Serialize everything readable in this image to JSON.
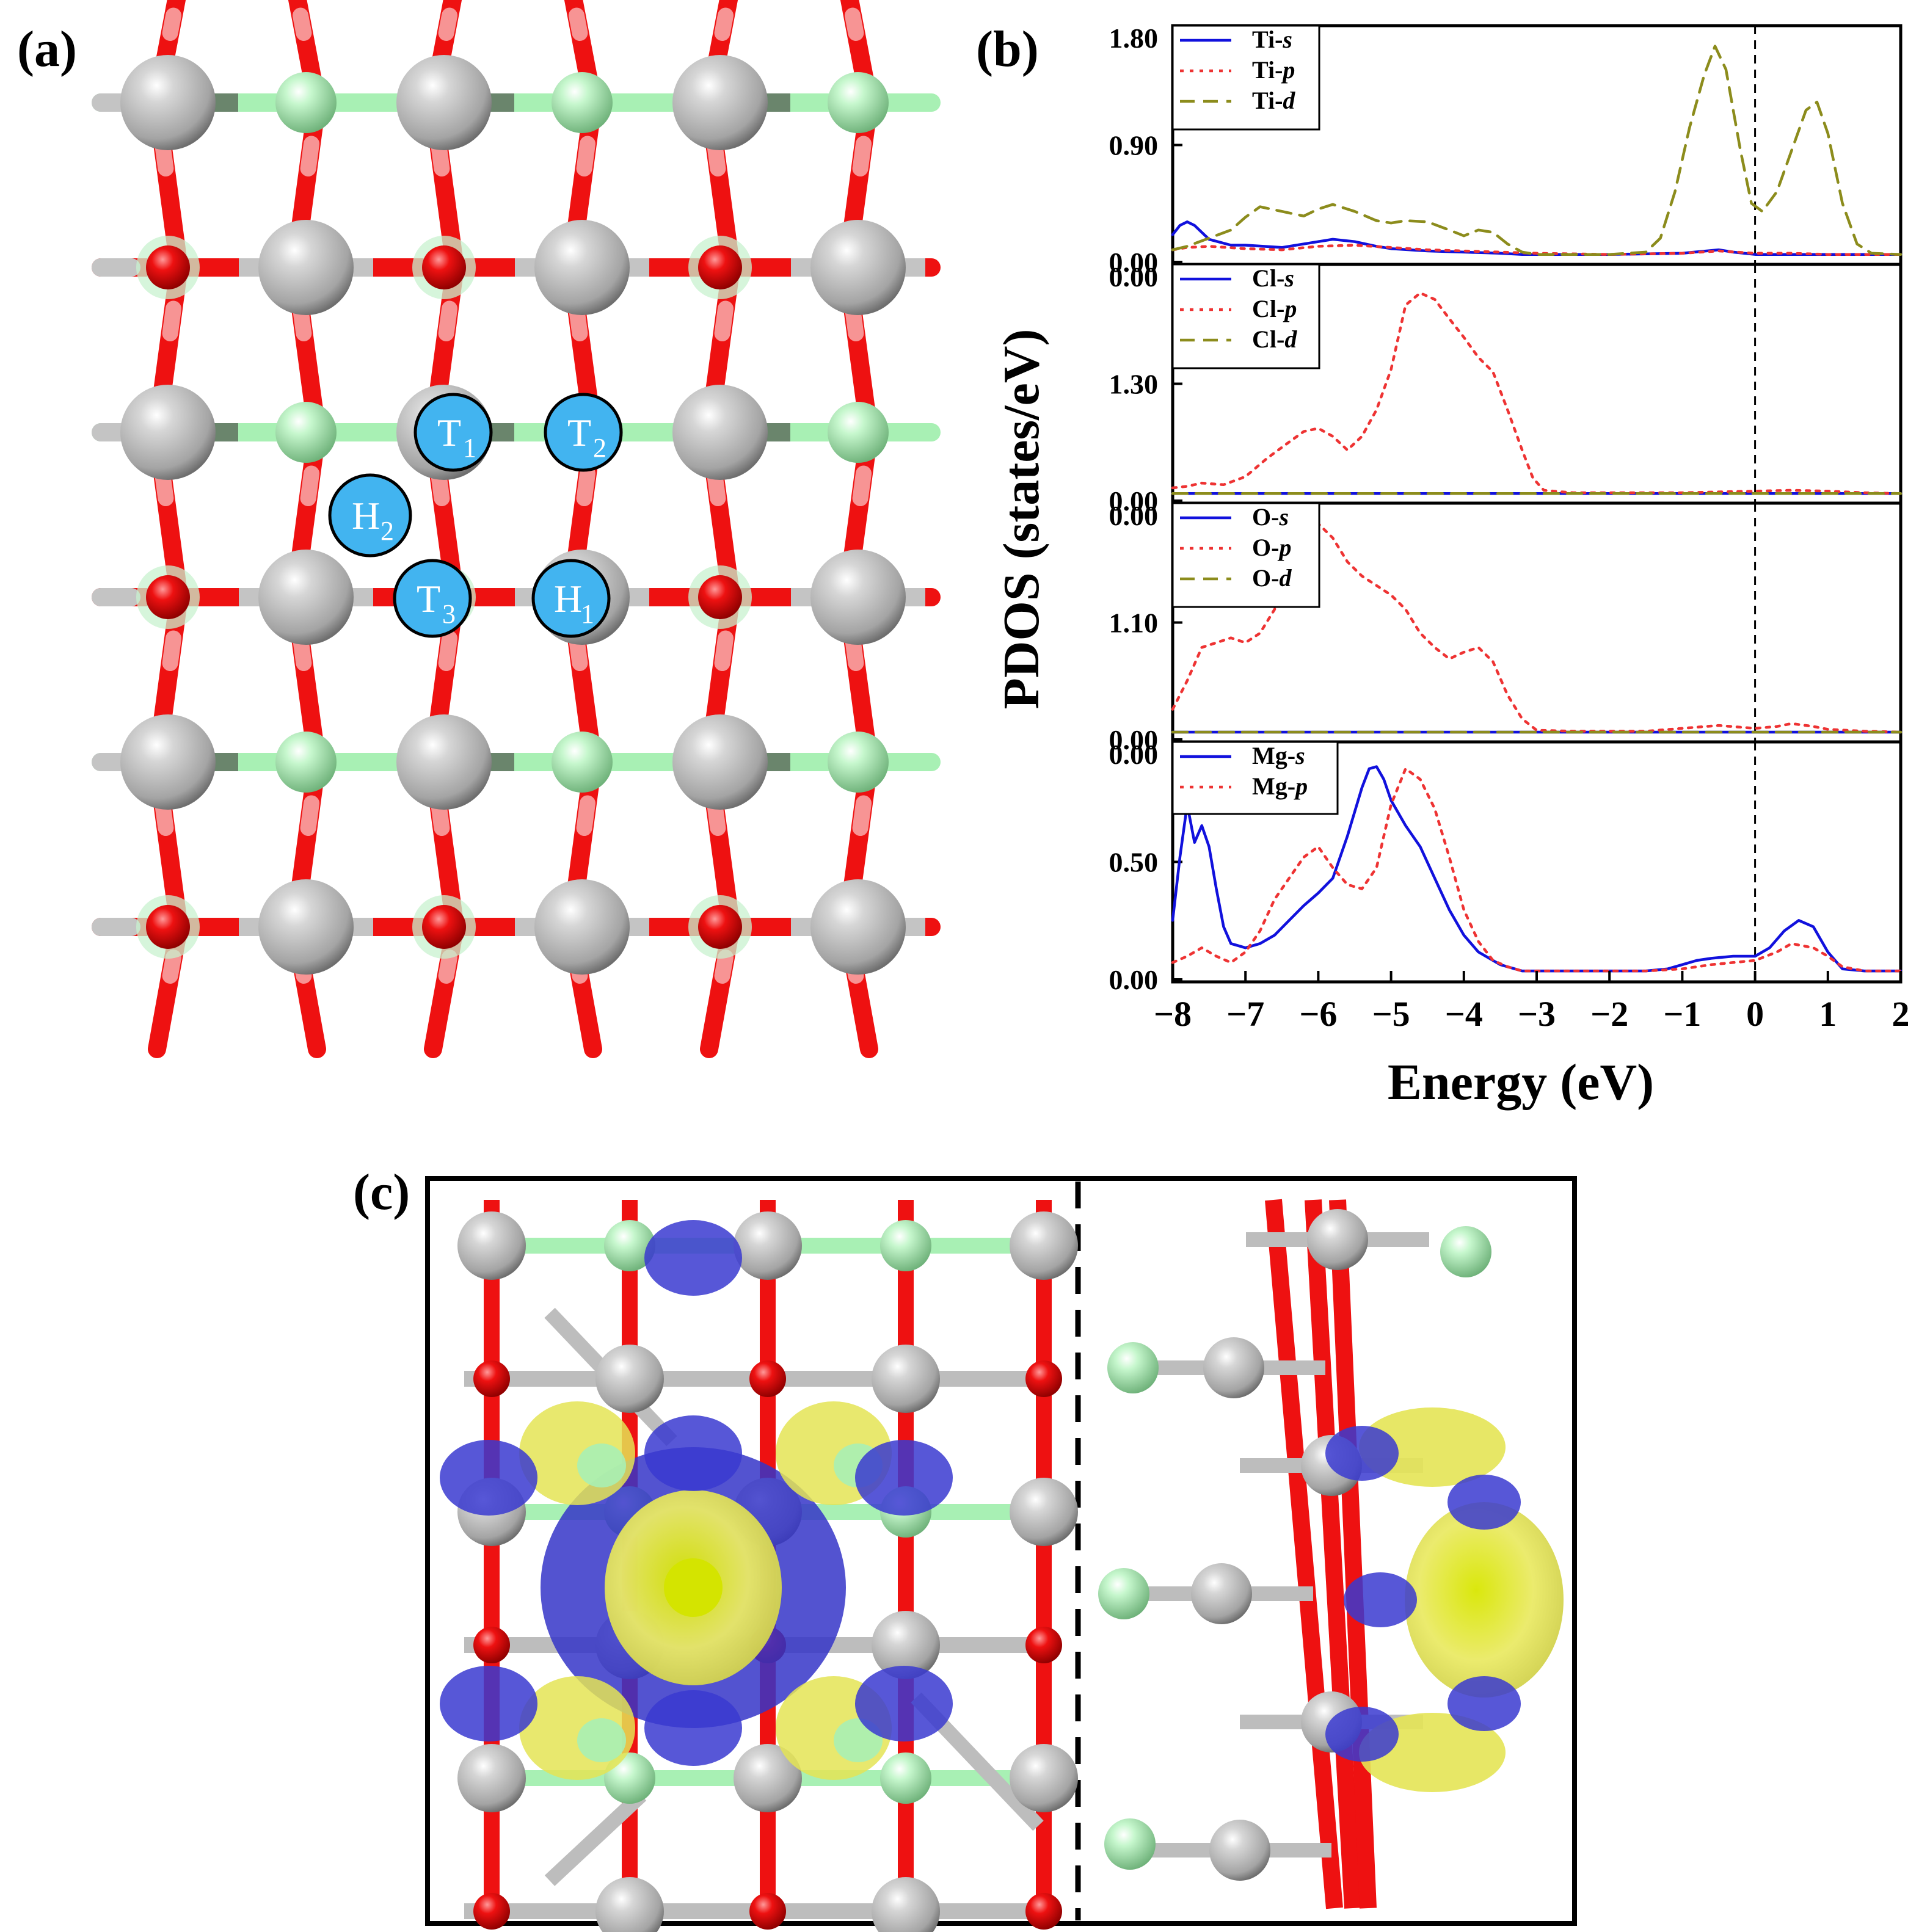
{
  "figure": {
    "panel_labels": [
      "(a)",
      "(b)",
      "(c)"
    ]
  },
  "structure": {
    "adsorption_sites": [
      {
        "label": "T",
        "sub": "1"
      },
      {
        "label": "T",
        "sub": "2"
      },
      {
        "label": "H",
        "sub": "2"
      },
      {
        "label": "T",
        "sub": "3"
      },
      {
        "label": "H",
        "sub": "1"
      }
    ],
    "colors": {
      "ti": "#b9b9b9",
      "cl": "#a8f0b4",
      "o": "#ee1111",
      "site": "#42b4f0",
      "charge_accumulation": "#e6e64a",
      "charge_depletion": "#3a3ad0"
    }
  },
  "chart_data": {
    "type": "line",
    "xlabel": "Energy (eV)",
    "ylabel": "PDOS (states/eV)",
    "xlim": [
      -8,
      2
    ],
    "xticks": [
      -8,
      -7,
      -6,
      -5,
      -4,
      -3,
      -2,
      -1,
      0,
      1,
      2
    ],
    "xtick_labels": [
      "−8",
      "−7",
      "−6",
      "−5",
      "−4",
      "−3",
      "−2",
      "−1",
      "0",
      "1",
      "2"
    ],
    "fermi_level": 0,
    "panels": [
      {
        "yticks": [
          "1.80",
          "0.90",
          "0.00"
        ],
        "ylim": [
          0,
          1.8
        ],
        "legend_position": "top-left",
        "series": [
          {
            "name": "Ti-",
            "orbital": "s",
            "style": "solid",
            "color": "#1111dd",
            "x": [
              -8,
              -7.9,
              -7.8,
              -7.7,
              -7.5,
              -7.2,
              -7,
              -6.5,
              -6,
              -5.8,
              -5.5,
              -5.2,
              -5,
              -4.5,
              -4,
              -3.5,
              -3.2,
              -3,
              -2,
              -1,
              -0.5,
              -0.3,
              0,
              0.5,
              1,
              1.5,
              2
            ],
            "y": [
              0.18,
              0.26,
              0.29,
              0.26,
              0.14,
              0.09,
              0.09,
              0.07,
              0.12,
              0.14,
              0.12,
              0.08,
              0.06,
              0.04,
              0.03,
              0.02,
              0.01,
              0.01,
              0.01,
              0.02,
              0.05,
              0.03,
              0.01,
              0.01,
              0.01,
              0.01,
              0.01
            ]
          },
          {
            "name": "Ti-",
            "orbital": "p",
            "style": "dotted",
            "color": "#ee3333",
            "x": [
              -8,
              -7.8,
              -7.5,
              -7,
              -6.5,
              -6,
              -5.5,
              -5,
              -4.5,
              -4,
              -3.5,
              -3,
              -2,
              -1,
              -0.5,
              0,
              0.5,
              1,
              1.5,
              2
            ],
            "y": [
              0.05,
              0.07,
              0.08,
              0.06,
              0.05,
              0.08,
              0.09,
              0.07,
              0.05,
              0.04,
              0.03,
              0.02,
              0.01,
              0.02,
              0.04,
              0.02,
              0.02,
              0.01,
              0.01,
              0.01
            ]
          },
          {
            "name": "Ti-",
            "orbital": "d",
            "style": "dashed",
            "color": "#8c8c1c",
            "x": [
              -8,
              -7.8,
              -7.5,
              -7.2,
              -7,
              -6.8,
              -6.5,
              -6.2,
              -6,
              -5.8,
              -5.5,
              -5.2,
              -5,
              -4.8,
              -4.5,
              -4.2,
              -4,
              -3.8,
              -3.6,
              -3.4,
              -3.2,
              -3,
              -2.5,
              -2,
              -1.5,
              -1.3,
              -1.1,
              -0.9,
              -0.7,
              -0.55,
              -0.4,
              -0.2,
              -0.05,
              0.1,
              0.3,
              0.5,
              0.7,
              0.85,
              1,
              1.2,
              1.4,
              1.6,
              2
            ],
            "y": [
              0.05,
              0.08,
              0.15,
              0.22,
              0.33,
              0.42,
              0.38,
              0.34,
              0.4,
              0.44,
              0.38,
              0.3,
              0.28,
              0.3,
              0.29,
              0.22,
              0.17,
              0.22,
              0.2,
              0.1,
              0.03,
              0.01,
              0.01,
              0.01,
              0.03,
              0.15,
              0.55,
              1.1,
              1.55,
              1.8,
              1.6,
              0.9,
              0.45,
              0.38,
              0.55,
              0.9,
              1.25,
              1.32,
              1.05,
              0.45,
              0.1,
              0.02,
              0.01
            ]
          }
        ]
      },
      {
        "yticks": [
          "0.00",
          "1.30",
          "0.00"
        ],
        "ylim": [
          0,
          2.6
        ],
        "legend_position": "top-left",
        "series": [
          {
            "name": "Cl-",
            "orbital": "s",
            "style": "solid",
            "color": "#1111dd",
            "x": [
              -8,
              -6,
              -4,
              -2,
              0,
              2
            ],
            "y": [
              0.01,
              0.01,
              0.01,
              0.01,
              0.01,
              0.01
            ]
          },
          {
            "name": "Cl-",
            "orbital": "p",
            "style": "dotted",
            "color": "#ee3333",
            "x": [
              -8,
              -7.8,
              -7.6,
              -7.3,
              -7,
              -6.7,
              -6.4,
              -6.2,
              -6,
              -5.8,
              -5.6,
              -5.4,
              -5.2,
              -5,
              -4.8,
              -4.6,
              -4.4,
              -4.2,
              -4,
              -3.8,
              -3.6,
              -3.4,
              -3.2,
              -3.05,
              -2.9,
              -2.5,
              -2,
              -1.5,
              -1,
              -0.5,
              0,
              0.5,
              1,
              1.5,
              2
            ],
            "y": [
              0.08,
              0.1,
              0.14,
              0.12,
              0.22,
              0.45,
              0.65,
              0.78,
              0.82,
              0.72,
              0.55,
              0.72,
              1.05,
              1.55,
              2.35,
              2.5,
              2.42,
              2.18,
              1.95,
              1.7,
              1.52,
              1.05,
              0.55,
              0.2,
              0.05,
              0.02,
              0.02,
              0.02,
              0.02,
              0.03,
              0.04,
              0.05,
              0.04,
              0.02,
              0.01
            ]
          },
          {
            "name": "Cl-",
            "orbital": "d",
            "style": "dashed",
            "color": "#8c8c1c",
            "x": [
              -8,
              -6,
              -4,
              -2,
              0,
              2
            ],
            "y": [
              0.01,
              0.01,
              0.01,
              0.01,
              0.01,
              0.01
            ]
          }
        ]
      },
      {
        "yticks": [
          "0.00",
          "1.10",
          "0.00"
        ],
        "ylim": [
          0,
          2.2
        ],
        "legend_position": "top-left",
        "series": [
          {
            "name": "O-",
            "orbital": "s",
            "style": "solid",
            "color": "#1111dd",
            "x": [
              -8,
              -6,
              -4,
              -2,
              0,
              2
            ],
            "y": [
              0.01,
              0.01,
              0.01,
              0.01,
              0.01,
              0.01
            ]
          },
          {
            "name": "O-",
            "orbital": "p",
            "style": "dotted",
            "color": "#ee3333",
            "x": [
              -8,
              -7.8,
              -7.6,
              -7.4,
              -7.2,
              -7,
              -6.8,
              -6.6,
              -6.4,
              -6.2,
              -6,
              -5.8,
              -5.6,
              -5.4,
              -5.2,
              -5,
              -4.8,
              -4.6,
              -4.4,
              -4.2,
              -4,
              -3.8,
              -3.6,
              -3.4,
              -3.2,
              -3,
              -2.5,
              -2,
              -1.5,
              -1,
              -0.5,
              0,
              0.3,
              0.5,
              0.8,
              1,
              1.5,
              2
            ],
            "y": [
              0.25,
              0.55,
              0.9,
              0.95,
              1.0,
              0.95,
              1.05,
              1.3,
              1.65,
              1.95,
              2.2,
              2.05,
              1.8,
              1.65,
              1.55,
              1.45,
              1.3,
              1.05,
              0.9,
              0.78,
              0.85,
              0.9,
              0.75,
              0.4,
              0.15,
              0.03,
              0.02,
              0.02,
              0.02,
              0.05,
              0.08,
              0.05,
              0.07,
              0.1,
              0.07,
              0.04,
              0.02,
              0.01
            ]
          },
          {
            "name": "O-",
            "orbital": "d",
            "style": "dashed",
            "color": "#8c8c1c",
            "x": [
              -8,
              -6,
              -4,
              -2,
              0,
              2
            ],
            "y": [
              0.01,
              0.01,
              0.01,
              0.01,
              0.01,
              0.01
            ]
          }
        ]
      },
      {
        "yticks": [
          "0.00",
          "0.50",
          "0.00"
        ],
        "ylim": [
          0,
          1.0
        ],
        "legend_position": "top-left",
        "series": [
          {
            "name": "Mg-",
            "orbital": "s",
            "style": "solid",
            "color": "#1111dd",
            "x": [
              -8,
              -7.9,
              -7.8,
              -7.7,
              -7.6,
              -7.5,
              -7.4,
              -7.3,
              -7.2,
              -7,
              -6.8,
              -6.6,
              -6.4,
              -6.2,
              -6,
              -5.8,
              -5.6,
              -5.4,
              -5.3,
              -5.2,
              -5.1,
              -5,
              -4.8,
              -4.6,
              -4.4,
              -4.2,
              -4,
              -3.8,
              -3.5,
              -3.2,
              -3,
              -2,
              -1.5,
              -1.2,
              -1,
              -0.8,
              -0.6,
              -0.3,
              0,
              0.2,
              0.4,
              0.6,
              0.8,
              1,
              1.2,
              1.5,
              2
            ],
            "y": [
              0.25,
              0.55,
              0.8,
              0.62,
              0.7,
              0.6,
              0.4,
              0.22,
              0.14,
              0.12,
              0.14,
              0.18,
              0.25,
              0.32,
              0.38,
              0.45,
              0.65,
              0.88,
              0.97,
              0.98,
              0.92,
              0.82,
              0.7,
              0.6,
              0.45,
              0.3,
              0.18,
              0.1,
              0.04,
              0.01,
              0.01,
              0.01,
              0.01,
              0.02,
              0.04,
              0.06,
              0.07,
              0.08,
              0.08,
              0.12,
              0.2,
              0.25,
              0.22,
              0.1,
              0.02,
              0.01,
              0.01
            ]
          },
          {
            "name": "Mg-",
            "orbital": "p",
            "style": "dotted",
            "color": "#ee3333",
            "x": [
              -8,
              -7.8,
              -7.6,
              -7.4,
              -7.2,
              -7,
              -6.8,
              -6.6,
              -6.4,
              -6.2,
              -6,
              -5.8,
              -5.6,
              -5.4,
              -5.2,
              -5,
              -4.8,
              -4.6,
              -4.4,
              -4.2,
              -4,
              -3.8,
              -3.6,
              -3.4,
              -3.2,
              -3,
              -2,
              -1.5,
              -1,
              -0.6,
              -0.3,
              0,
              0.3,
              0.5,
              0.8,
              1,
              1.2,
              1.5,
              2
            ],
            "y": [
              0.05,
              0.08,
              0.12,
              0.08,
              0.05,
              0.1,
              0.2,
              0.35,
              0.45,
              0.55,
              0.6,
              0.5,
              0.42,
              0.4,
              0.5,
              0.8,
              0.97,
              0.92,
              0.78,
              0.55,
              0.3,
              0.15,
              0.06,
              0.03,
              0.01,
              0.01,
              0.01,
              0.01,
              0.02,
              0.04,
              0.05,
              0.06,
              0.1,
              0.14,
              0.12,
              0.08,
              0.03,
              0.01,
              0.01
            ]
          }
        ]
      }
    ]
  }
}
